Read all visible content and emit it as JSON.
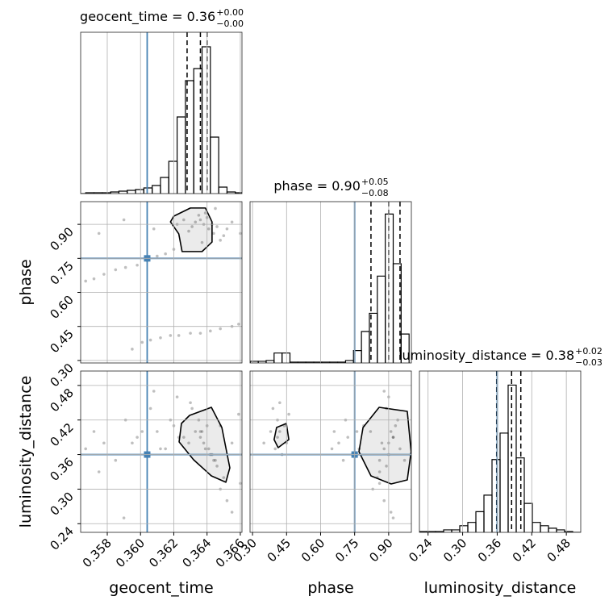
{
  "chart_data": {
    "type": "corner",
    "grid": true,
    "truth_color": "#4682b4",
    "line_color": "#000000",
    "sample_color": "#000000",
    "parameters": [
      {
        "name": "geocent_time",
        "title": {
          "text": "geocent_time = 0.36",
          "upper": "+0.00",
          "lower": "−0.00"
        },
        "lim": [
          0.3564,
          0.3661
        ],
        "ticks": [
          {
            "value": 0.358,
            "label": "0.358"
          },
          {
            "value": 0.36,
            "label": "0.360"
          },
          {
            "value": 0.362,
            "label": "0.362"
          },
          {
            "value": 0.364,
            "label": "0.364"
          },
          {
            "value": 0.366,
            "label": "0.366"
          }
        ],
        "truth": 0.3604,
        "quantiles": [
          0.3628,
          0.3636,
          0.364
        ],
        "bins": [
          0.3562,
          0.3567,
          0.3572,
          0.3577,
          0.3582,
          0.3587,
          0.3592,
          0.3597,
          0.3602,
          0.3607,
          0.3612,
          0.3617,
          0.3622,
          0.3627,
          0.3632,
          0.3637,
          0.3642,
          0.3647,
          0.3652,
          0.3657,
          0.3662
        ],
        "counts": [
          0,
          1,
          1,
          1,
          2,
          3,
          4,
          5,
          7,
          10,
          20,
          40,
          95,
          140,
          155,
          182,
          70,
          8,
          2,
          1
        ],
        "count_lim": [
          0,
          200
        ]
      },
      {
        "name": "phase",
        "title": {
          "text": "phase = 0.90",
          "upper": "+0.05",
          "lower": "−0.08"
        },
        "lim": [
          0.289,
          1.0
        ],
        "ticks": [
          {
            "value": 0.3,
            "label": "0.30"
          },
          0.45,
          {
            "value": 0.6,
            "label": "0.60"
          },
          0.75,
          {
            "value": 0.9,
            "label": "0.90"
          }
        ],
        "truth": 0.75,
        "quantiles": [
          0.822,
          0.9,
          0.95
        ],
        "bins": [
          0.29,
          0.325,
          0.36,
          0.395,
          0.43,
          0.465,
          0.5,
          0.535,
          0.57,
          0.605,
          0.64,
          0.675,
          0.71,
          0.745,
          0.78,
          0.815,
          0.85,
          0.885,
          0.92,
          0.955,
          0.99
        ],
        "counts": [
          2,
          2,
          3,
          12,
          12,
          1,
          1,
          1,
          1,
          1,
          1,
          1,
          3,
          15,
          38,
          60,
          105,
          180,
          120,
          35
        ],
        "count_lim": [
          0,
          195
        ]
      },
      {
        "name": "luminosity_distance",
        "title": {
          "text": "luminosity_distance = 0.38",
          "upper": "+0.02",
          "lower": "−0.03"
        },
        "lim": [
          0.225,
          0.505
        ],
        "ticks": [
          0.24,
          {
            "value": 0.3,
            "label": "0.30"
          },
          0.36,
          0.42,
          0.48
        ],
        "truth": 0.36,
        "quantiles": [
          0.359,
          0.385,
          0.401
        ],
        "bins": [
          0.225,
          0.239,
          0.253,
          0.267,
          0.281,
          0.295,
          0.309,
          0.323,
          0.337,
          0.351,
          0.365,
          0.379,
          0.393,
          0.407,
          0.421,
          0.435,
          0.449,
          0.463,
          0.477,
          0.491,
          0.505
        ],
        "counts": [
          1,
          1,
          1,
          3,
          3,
          8,
          12,
          25,
          45,
          88,
          120,
          178,
          90,
          35,
          12,
          8,
          5,
          3,
          1,
          0
        ],
        "count_lim": [
          0,
          195
        ]
      }
    ],
    "samples": {
      "geocent_time": [
        0.3638,
        0.3641,
        0.3636,
        0.3644,
        0.3633,
        0.3646,
        0.364,
        0.3629,
        0.365,
        0.3635,
        0.3643,
        0.3631,
        0.3648,
        0.3626,
        0.3652,
        0.3639,
        0.3622,
        0.3645,
        0.3637,
        0.3655,
        0.3595,
        0.3601,
        0.3606,
        0.3612,
        0.3618,
        0.3623,
        0.363,
        0.3636,
        0.3642,
        0.3648,
        0.3655,
        0.3659,
        0.3567,
        0.3572,
        0.3578,
        0.3585,
        0.3591,
        0.3598,
        0.3604,
        0.361,
        0.3615,
        0.362,
        0.3575,
        0.3608,
        0.359,
        0.366
      ],
      "phase": [
        0.9,
        0.88,
        0.92,
        0.86,
        0.91,
        0.89,
        0.93,
        0.87,
        0.85,
        0.94,
        0.9,
        0.89,
        0.83,
        0.92,
        0.88,
        0.95,
        0.9,
        0.97,
        0.82,
        0.91,
        0.35,
        0.38,
        0.39,
        0.4,
        0.41,
        0.41,
        0.42,
        0.42,
        0.43,
        0.44,
        0.45,
        0.46,
        0.65,
        0.66,
        0.68,
        0.7,
        0.71,
        0.72,
        0.74,
        0.76,
        0.77,
        0.79,
        0.86,
        0.88,
        0.92,
        0.86
      ],
      "luminosity_distance": [
        0.38,
        0.37,
        0.39,
        0.35,
        0.4,
        0.34,
        0.41,
        0.38,
        0.32,
        0.42,
        0.36,
        0.44,
        0.3,
        0.39,
        0.28,
        0.37,
        0.46,
        0.35,
        0.4,
        0.26,
        0.38,
        0.4,
        0.44,
        0.37,
        0.42,
        0.39,
        0.45,
        0.4,
        0.36,
        0.41,
        0.38,
        0.43,
        0.37,
        0.4,
        0.38,
        0.35,
        0.42,
        0.39,
        0.36,
        0.4,
        0.37,
        0.41,
        0.33,
        0.47,
        0.25,
        0.31
      ]
    },
    "contours": {
      "geocent_time/phase": [
        {
          "x": [
            0.362,
            0.363,
            0.3639,
            0.3643,
            0.3643,
            0.3637,
            0.3625,
            0.3623,
            0.3618
          ],
          "y": [
            0.936,
            0.972,
            0.972,
            0.911,
            0.822,
            0.78,
            0.78,
            0.858,
            0.911
          ]
        }
      ],
      "geocent_time/luminosity_distance": [
        {
          "x": [
            0.36295,
            0.36426,
            0.36489,
            0.36537,
            0.36513,
            0.36426,
            0.36319,
            0.36232,
            0.36246
          ],
          "y": [
            0.428,
            0.442,
            0.407,
            0.337,
            0.312,
            0.323,
            0.351,
            0.382,
            0.414
          ]
        }
      ],
      "phase/luminosity_distance": [
        {
          "x": [
            0.787,
            0.858,
            0.982,
            0.999,
            0.982,
            0.911,
            0.822,
            0.769
          ],
          "y": [
            0.407,
            0.442,
            0.435,
            0.365,
            0.316,
            0.309,
            0.323,
            0.365
          ]
        },
        {
          "x": [
            0.406,
            0.449,
            0.46,
            0.413,
            0.395
          ],
          "y": [
            0.407,
            0.414,
            0.386,
            0.372,
            0.386
          ]
        }
      ]
    }
  }
}
